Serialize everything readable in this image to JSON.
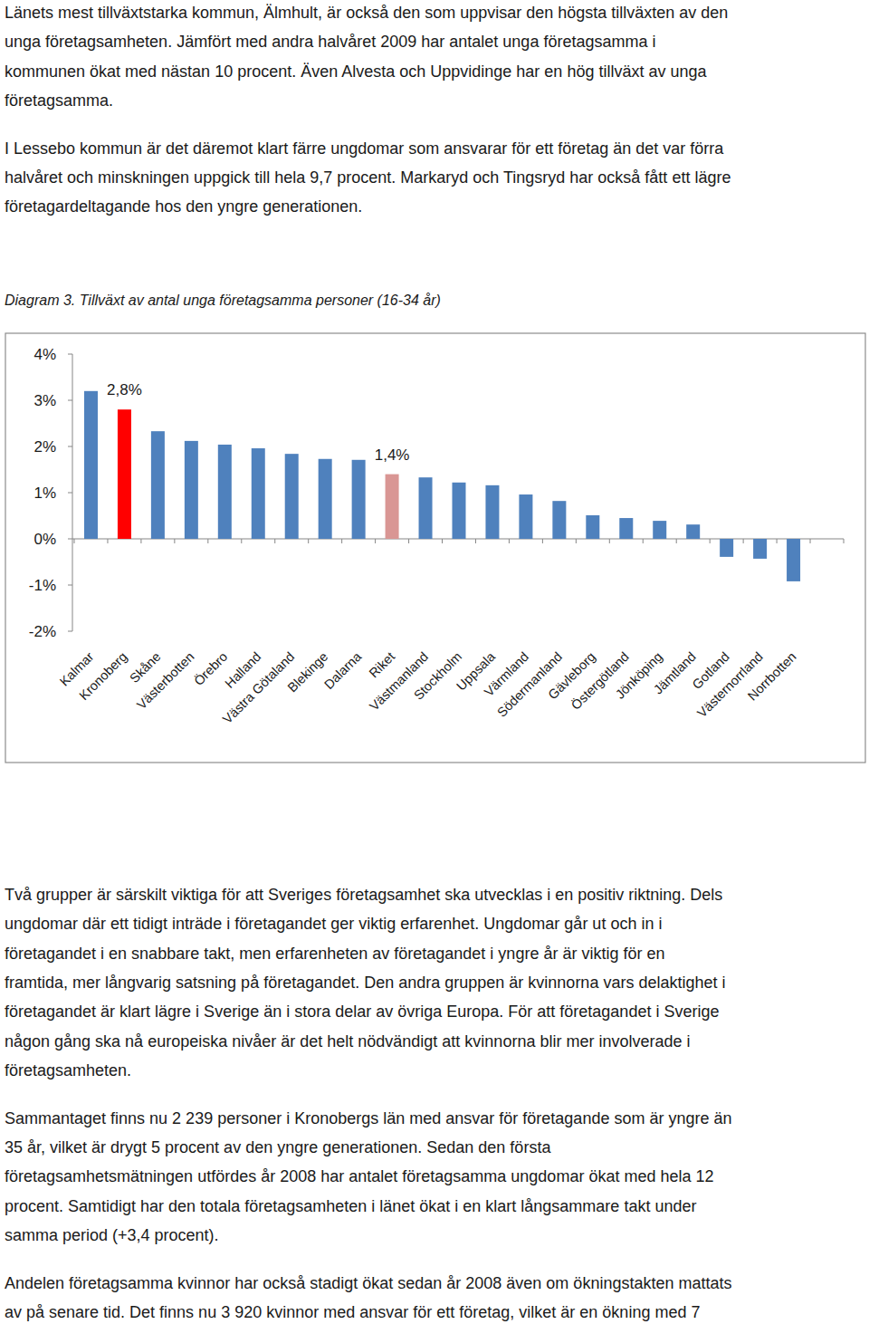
{
  "paragraphs_top": [
    [
      "Länets mest tillväxtstarka kommun, Älmhult, är också den som uppvisar den högsta tillväxten av den",
      "unga företagsamheten. Jämfört med andra halvåret 2009 har antalet unga företagsamma i",
      "kommunen ökat med nästan 10 procent. Även Alvesta och Uppvidinge har en hög tillväxt av unga",
      "företagsamma."
    ],
    [
      "I Lessebo kommun är det däremot klart färre ungdomar som ansvarar för ett företag än det var förra",
      "halvåret och minskningen uppgick till hela 9,7 procent. Markaryd och Tingsryd har också fått ett lägre",
      "företagardeltagande hos den yngre generationen."
    ]
  ],
  "caption": "Diagram 3. Tillväxt av antal unga företagsamma personer (16-34 år)",
  "chart_data": {
    "type": "bar",
    "categories": [
      "Kalmar",
      "Kronoberg",
      "Skåne",
      "Västerbotten",
      "Örebro",
      "Halland",
      "Västra Götaland",
      "Blekinge",
      "Dalarna",
      "Riket",
      "Västmanland",
      "Stockholm",
      "Uppsala",
      "Värmland",
      "Södermanland",
      "Gävleborg",
      "Östergötland",
      "Jönköping",
      "Jämtland",
      "Gotland",
      "Västernorrland",
      "Norrbotten"
    ],
    "values": [
      3.2,
      2.8,
      2.33,
      2.12,
      2.04,
      1.96,
      1.84,
      1.73,
      1.71,
      1.4,
      1.33,
      1.22,
      1.16,
      0.96,
      0.82,
      0.51,
      0.45,
      0.39,
      0.31,
      -0.39,
      -0.43,
      -0.92
    ],
    "value_labels": [
      null,
      "2,8%",
      null,
      null,
      null,
      null,
      null,
      null,
      null,
      "1,4%",
      null,
      null,
      null,
      null,
      null,
      null,
      null,
      null,
      null,
      null,
      null,
      null
    ],
    "data_labels": true,
    "colors": [
      "#4f81bd",
      "#ff0000",
      "#4f81bd",
      "#4f81bd",
      "#4f81bd",
      "#4f81bd",
      "#4f81bd",
      "#4f81bd",
      "#4f81bd",
      "#d99694",
      "#4f81bd",
      "#4f81bd",
      "#4f81bd",
      "#4f81bd",
      "#4f81bd",
      "#4f81bd",
      "#4f81bd",
      "#4f81bd",
      "#4f81bd",
      "#4f81bd",
      "#4f81bd",
      "#4f81bd"
    ],
    "ylim": [
      -2,
      4
    ],
    "yticks": [
      {
        "value": -2,
        "label": "-2%"
      },
      {
        "value": -1,
        "label": "-1%"
      },
      {
        "value": 0,
        "label": "0%"
      },
      {
        "value": 1,
        "label": "1%"
      },
      {
        "value": 2,
        "label": "2%"
      },
      {
        "value": 3,
        "label": "3%"
      },
      {
        "value": 4,
        "label": "4%"
      }
    ],
    "grid": false
  },
  "paragraphs_bottom": [
    [
      "Två grupper är särskilt viktiga för att Sveriges företagsamhet ska utvecklas i en positiv riktning. Dels",
      "ungdomar där ett tidigt inträde i företagandet ger viktig erfarenhet. Ungdomar går ut och in i",
      "företagandet i en snabbare takt, men erfarenheten av företagandet i yngre år är viktig för en",
      "framtida, mer långvarig satsning på företagandet. Den andra gruppen är kvinnorna vars delaktighet i",
      "företagandet är klart lägre i Sverige än i stora delar av övriga Europa. För att företagandet i Sverige",
      "någon gång ska nå europeiska nivåer är det helt nödvändigt att kvinnorna blir mer involverade i",
      "företagsamheten."
    ],
    [
      "Sammantaget finns nu 2 239 personer i Kronobergs län med ansvar för företagande som är yngre än",
      "35 år, vilket är drygt 5 procent av den yngre generationen. Sedan den första",
      "företagsamhetsmätningen utfördes år 2008 har antalet företagsamma ungdomar ökat med hela 12",
      "procent. Samtidigt har den totala företagsamheten i länet ökat i en klart långsammare takt under",
      "samma period (+3,4 procent)."
    ],
    [
      "Andelen företagsamma kvinnor har också stadigt ökat sedan år 2008 även om ökningstakten mattats",
      "av på senare tid. Det finns nu 3 920 kvinnor med ansvar för ett företag, vilket är en ökning med 7"
    ]
  ]
}
